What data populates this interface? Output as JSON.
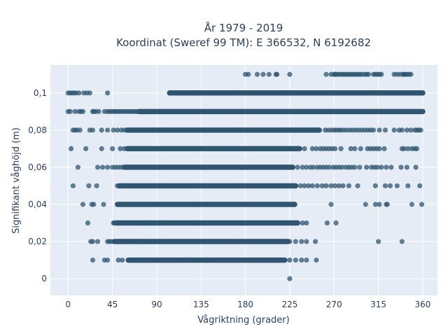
{
  "chart_data": {
    "type": "scatter",
    "title_line1": "År 1979 - 2019",
    "title_line2": "Koordinat (Sweref 99 TM): E 366532, N 6192682",
    "xlabel": "Vågriktning (grader)",
    "ylabel": "Signifikant våghöjd (m)",
    "xlim": [
      -18,
      375
    ],
    "ylim": [
      -0.009,
      0.115
    ],
    "xticks": [
      0,
      45,
      90,
      135,
      180,
      225,
      270,
      315,
      360
    ],
    "xtick_labels": [
      "0",
      "45",
      "90",
      "135",
      "180",
      "225",
      "270",
      "315",
      "360"
    ],
    "yticks": [
      0,
      0.02,
      0.04,
      0.06,
      0.08,
      0.1
    ],
    "ytick_labels": [
      "0",
      "0,02",
      "0,04",
      "0,06",
      "0,08",
      "0,1"
    ],
    "grid": true,
    "legend": "none",
    "marker_color": "#2f5570",
    "plot_bg": "#e5ecf6",
    "series": [
      {
        "y": 0.11,
        "dense": [],
        "sparse": [
          180,
          183,
          192,
          198,
          204,
          211,
          212,
          225,
          262,
          267,
          270,
          271,
          272,
          274,
          276,
          278,
          280,
          282,
          284,
          286,
          288,
          290,
          292,
          294,
          296,
          298,
          301,
          303,
          305,
          310,
          312,
          314,
          316,
          318,
          331,
          334,
          337,
          340,
          341,
          342,
          344,
          346,
          348
        ]
      },
      {
        "y": 0.1,
        "dense": [
          [
            103,
            360
          ]
        ],
        "sparse": [
          0,
          2,
          4,
          6,
          8,
          11,
          16,
          19,
          22,
          40
        ]
      },
      {
        "y": 0.09,
        "dense": [
          [
            72,
            360
          ]
        ],
        "sparse": [
          0,
          2,
          7,
          11,
          13,
          15,
          25,
          26,
          28,
          31,
          37,
          40,
          42,
          44,
          46,
          48,
          50,
          52,
          54,
          56,
          58,
          60,
          62,
          64,
          66,
          68,
          70
        ]
      },
      {
        "y": 0.08,
        "dense": [
          [
            60,
            255
          ]
        ],
        "sparse": [
          5,
          7,
          9,
          12,
          22,
          25,
          34,
          40,
          46,
          50,
          54,
          57,
          261,
          264,
          267,
          270,
          272,
          275,
          277,
          280,
          283,
          286,
          289,
          292,
          295,
          298,
          301,
          304,
          307,
          310,
          316,
          322,
          331,
          336,
          339,
          344,
          348,
          352,
          354,
          356,
          358
        ]
      },
      {
        "y": 0.07,
        "dense": [
          [
            60,
            235
          ]
        ],
        "sparse": [
          3,
          18,
          34,
          45,
          53,
          57,
          240,
          248,
          252,
          256,
          259,
          262,
          265,
          268,
          271,
          277,
          287,
          291,
          297,
          304,
          307,
          310,
          313,
          316,
          321,
          339,
          341,
          345,
          349,
          352,
          354
        ]
      },
      {
        "y": 0.06,
        "dense": [
          [
            57,
            228
          ]
        ],
        "sparse": [
          10,
          30,
          35,
          40,
          45,
          48,
          51,
          54,
          233,
          238,
          242,
          246,
          249,
          253,
          256,
          259,
          262,
          265,
          269,
          272,
          275,
          278,
          282,
          285,
          288,
          291,
          296,
          303,
          308,
          311,
          314,
          318,
          323,
          328,
          338,
          344,
          353
        ]
      },
      {
        "y": 0.05,
        "dense": [
          [
            52,
            231
          ]
        ],
        "sparse": [
          5,
          21,
          29,
          50,
          236,
          240,
          244,
          248,
          253,
          258,
          262,
          267,
          271,
          275,
          279,
          285,
          294,
          312,
          322,
          327,
          334,
          345,
          357
        ]
      },
      {
        "y": 0.04,
        "dense": [
          [
            50,
            230
          ]
        ],
        "sparse": [
          15,
          24,
          26,
          36,
          267,
          302,
          312,
          316,
          323,
          324,
          349,
          359
        ]
      },
      {
        "y": 0.03,
        "dense": [
          [
            49,
            233
          ]
        ],
        "sparse": [
          20,
          46,
          47,
          48,
          78,
          82,
          85,
          238,
          242,
          263,
          272
        ]
      },
      {
        "y": 0.02,
        "dense": [
          [
            47,
            223
          ]
        ],
        "sparse": [
          23,
          25,
          30,
          40,
          42,
          44,
          60,
          68,
          78,
          81,
          88,
          91,
          225,
          231,
          237,
          242,
          251,
          315,
          339
        ]
      },
      {
        "y": 0.01,
        "dense": [
          [
            61,
            220
          ]
        ],
        "sparse": [
          25,
          37,
          40,
          51,
          55,
          63,
          67,
          70,
          73,
          75,
          77,
          80,
          83,
          85,
          87,
          90,
          93,
          96,
          99,
          102,
          105,
          112,
          115,
          118,
          130,
          134,
          138,
          142,
          146,
          225,
          231,
          237,
          242,
          252
        ]
      },
      {
        "y": 0.0,
        "dense": [],
        "sparse": [
          225
        ]
      }
    ]
  }
}
